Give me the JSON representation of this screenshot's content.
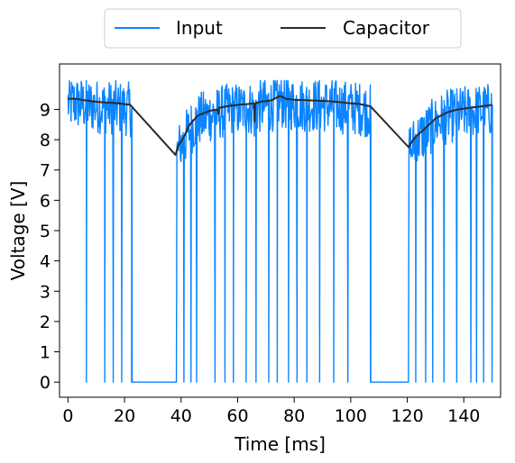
{
  "chart_data": {
    "type": "line",
    "xlabel": "Time [ms]",
    "ylabel": "Voltage [V]",
    "xlim": [
      -3,
      153
    ],
    "ylim": [
      -0.5,
      10.5
    ],
    "xticks": [
      0,
      20,
      40,
      60,
      80,
      100,
      120,
      140
    ],
    "yticks": [
      0,
      1,
      2,
      3,
      4,
      5,
      6,
      7,
      8,
      9
    ],
    "grid": false,
    "legend_position": "top-center-outside",
    "series": [
      {
        "name": "Input",
        "color": "#0a84ff",
        "style": "noisy high level ~7.5-10 V with drops to 0 V",
        "high_segments": [
          [
            0,
            22.5
          ],
          [
            38.5,
            107
          ],
          [
            120.5,
            150
          ]
        ],
        "zero_segments": [
          [
            22.5,
            38.5
          ],
          [
            107,
            120.5
          ]
        ],
        "dropouts_to_zero": [
          6.5,
          13,
          16,
          19,
          22.5,
          38.5,
          41,
          43.5,
          45.5,
          52,
          55.5,
          58.5,
          63,
          66.5,
          71,
          74,
          78,
          81,
          84.5,
          89,
          94,
          99,
          107,
          120.5,
          123,
          126.5,
          129,
          133,
          137.5,
          142.5,
          144.5,
          147,
          150
        ]
      },
      {
        "name": "Capacitor",
        "color": "#2b2b2b",
        "x": [
          0,
          3,
          6,
          10,
          14,
          18,
          22,
          38,
          39,
          41,
          43,
          46,
          50,
          53,
          53.2,
          53.4,
          56,
          60,
          64,
          65.8,
          66,
          66.2,
          68,
          72,
          75,
          77,
          80,
          85,
          90,
          95,
          100,
          103,
          107,
          120.5,
          121,
          123,
          126,
          130,
          134,
          138,
          142,
          146,
          150
        ],
        "y": [
          9.35,
          9.35,
          9.3,
          9.25,
          9.22,
          9.2,
          9.15,
          7.5,
          7.8,
          8.1,
          8.5,
          8.8,
          8.95,
          9.0,
          8.85,
          9.05,
          9.1,
          9.15,
          9.18,
          9.2,
          8.6,
          9.2,
          9.25,
          9.3,
          9.45,
          9.35,
          9.32,
          9.3,
          9.28,
          9.25,
          9.2,
          9.18,
          9.1,
          7.75,
          7.85,
          8.1,
          8.35,
          8.7,
          8.9,
          9.0,
          9.05,
          9.1,
          9.15
        ]
      }
    ]
  }
}
